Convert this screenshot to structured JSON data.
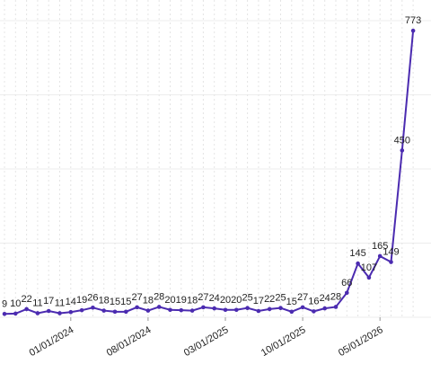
{
  "chart_data": {
    "type": "line",
    "categories": [
      null,
      null,
      null,
      null,
      null,
      null,
      "01/01/2024",
      null,
      null,
      null,
      null,
      null,
      null,
      "08/01/2024",
      null,
      null,
      null,
      null,
      null,
      null,
      "03/01/2025",
      null,
      null,
      null,
      null,
      null,
      null,
      "10/01/2025",
      null,
      null,
      null,
      null,
      null,
      null,
      "05/01/2026",
      null,
      null,
      null
    ],
    "series": [
      {
        "color": "#4b2bb0",
        "values": [
          9,
          10,
          22,
          11,
          17,
          11,
          14,
          19,
          26,
          18,
          15,
          15,
          27,
          18,
          28,
          20,
          19,
          18,
          27,
          24,
          20,
          20,
          25,
          17,
          22,
          25,
          15,
          27,
          16,
          24,
          28,
          66,
          145,
          107,
          165,
          149,
          450,
          773
        ]
      }
    ],
    "ylim": [
      0,
      800
    ],
    "yticks": [
      0,
      200,
      400,
      600,
      800
    ],
    "grid": true
  }
}
